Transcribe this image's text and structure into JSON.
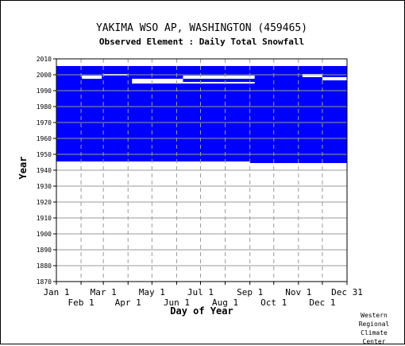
{
  "chart_data": {
    "type": "heatmap",
    "title": "YAKIMA WSO AP, WASHINGTON   (459465)",
    "subtitle": "Observed Element : Daily Total Snowfall",
    "xlabel": "Day of Year",
    "ylabel": "Year",
    "ylim": [
      1870,
      2010
    ],
    "y_ticks": [
      1870,
      1880,
      1890,
      1900,
      1910,
      1920,
      1930,
      1940,
      1950,
      1960,
      1970,
      1980,
      1990,
      2000,
      2010
    ],
    "x_ticks_upper": [
      {
        "day": 1,
        "label": "Jan 1"
      },
      {
        "day": 60,
        "label": "Mar 1"
      },
      {
        "day": 121,
        "label": "May 1"
      },
      {
        "day": 182,
        "label": "Jul 1"
      },
      {
        "day": 244,
        "label": "Sep 1"
      },
      {
        "day": 305,
        "label": "Nov 1"
      },
      {
        "day": 366,
        "label": "Dec 31"
      }
    ],
    "x_ticks_lower": [
      {
        "day": 32,
        "label": "Feb 1"
      },
      {
        "day": 91,
        "label": "Apr 1"
      },
      {
        "day": 152,
        "label": "Jun 1"
      },
      {
        "day": 213,
        "label": "Aug 1"
      },
      {
        "day": 274,
        "label": "Oct 1"
      },
      {
        "day": 335,
        "label": "Dec 1"
      }
    ],
    "xlim": [
      1,
      366
    ],
    "grid": true,
    "data_color": "#0000ff",
    "coverage": [
      {
        "start_day": 1,
        "end_day": 244,
        "start_year": 1946,
        "end_year": 2005
      },
      {
        "start_day": 244,
        "end_day": 366,
        "start_year": 1945,
        "end_year": 2005
      }
    ],
    "gaps": [
      {
        "start_day": 33,
        "end_day": 58,
        "start_year": 1998,
        "end_year": 1999
      },
      {
        "start_day": 60,
        "end_day": 90,
        "start_year": 2000,
        "end_year": 2000
      },
      {
        "start_day": 96,
        "end_day": 160,
        "start_year": 1996,
        "end_year": 1997
      },
      {
        "start_day": 96,
        "end_day": 250,
        "start_year": 1995,
        "end_year": 1995
      },
      {
        "start_day": 160,
        "end_day": 250,
        "start_year": 1998,
        "end_year": 1999
      },
      {
        "start_day": 310,
        "end_day": 335,
        "start_year": 1999,
        "end_year": 2000
      },
      {
        "start_day": 335,
        "end_day": 366,
        "start_year": 1997,
        "end_year": 1998
      }
    ],
    "credit": [
      "Western",
      "Regional",
      "Climate",
      "Center"
    ]
  }
}
